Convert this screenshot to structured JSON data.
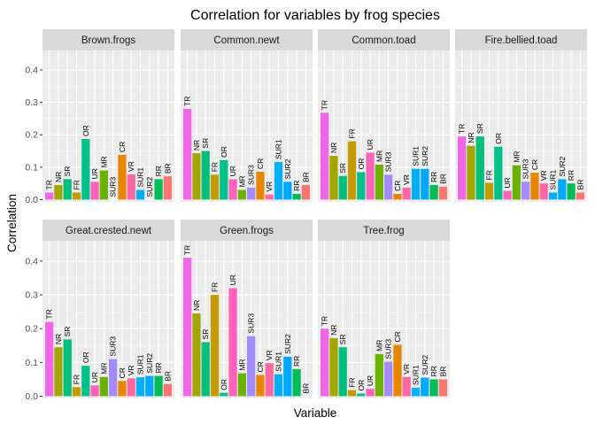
{
  "chart_data": {
    "type": "bar",
    "title": "Correlation for variables by frog species",
    "xlabel": "Variable",
    "ylabel": "Correlation",
    "ylim": [
      0,
      0.46
    ],
    "yticks": [
      0.0,
      0.1,
      0.2,
      0.3,
      0.4
    ],
    "ytick_labels": [
      "0.0",
      "0.1",
      "0.2",
      "0.3",
      "0.4"
    ],
    "grid": true,
    "facet_layout": "4 columns",
    "categories": [
      "TR",
      "NR",
      "SR",
      "FR",
      "OR",
      "UR",
      "MR",
      "SUR3",
      "CR",
      "VR",
      "SUR1",
      "SUR2",
      "RR",
      "BR"
    ],
    "category_colors": [
      "#F166E8",
      "#A3A500",
      "#00BF7D",
      "#C49A00",
      "#00C08B",
      "#FF62BC",
      "#6BB100",
      "#A58AFF",
      "#E58700",
      "#FF67A4",
      "#00B0F6",
      "#00A9FF",
      "#00BC55",
      "#F8766D"
    ],
    "panels": [
      {
        "name": "Brown.frogs",
        "values": [
          0.022,
          0.045,
          0.063,
          0.022,
          0.187,
          0.055,
          0.09,
          0.0,
          0.138,
          0.078,
          0.03,
          0.0,
          0.063,
          0.072
        ]
      },
      {
        "name": "Common.newt",
        "values": [
          0.28,
          0.143,
          0.15,
          0.077,
          0.122,
          0.063,
          0.03,
          0.037,
          0.086,
          0.016,
          0.116,
          0.055,
          0.018,
          0.045
        ]
      },
      {
        "name": "Common.toad",
        "values": [
          0.268,
          0.135,
          0.073,
          0.18,
          0.085,
          0.145,
          0.108,
          0.077,
          0.018,
          0.037,
          0.095,
          0.095,
          0.045,
          0.04
        ]
      },
      {
        "name": "Fire.bellied.toad",
        "values": [
          0.195,
          0.166,
          0.195,
          0.052,
          0.163,
          0.027,
          0.106,
          0.055,
          0.083,
          0.05,
          0.022,
          0.063,
          0.05,
          0.022
        ]
      },
      {
        "name": "Great.crested.newt",
        "values": [
          0.22,
          0.145,
          0.168,
          0.027,
          0.09,
          0.032,
          0.057,
          0.11,
          0.045,
          0.053,
          0.056,
          0.06,
          0.06,
          0.036
        ]
      },
      {
        "name": "Green.frogs",
        "values": [
          0.41,
          0.245,
          0.16,
          0.3,
          0.01,
          0.32,
          0.068,
          0.178,
          0.063,
          0.098,
          0.065,
          0.117,
          0.08,
          0.0
        ]
      },
      {
        "name": "Tree.frog",
        "values": [
          0.2,
          0.172,
          0.145,
          0.018,
          0.008,
          0.022,
          0.125,
          0.102,
          0.152,
          0.057,
          0.025,
          0.055,
          0.05,
          0.05
        ]
      }
    ]
  }
}
